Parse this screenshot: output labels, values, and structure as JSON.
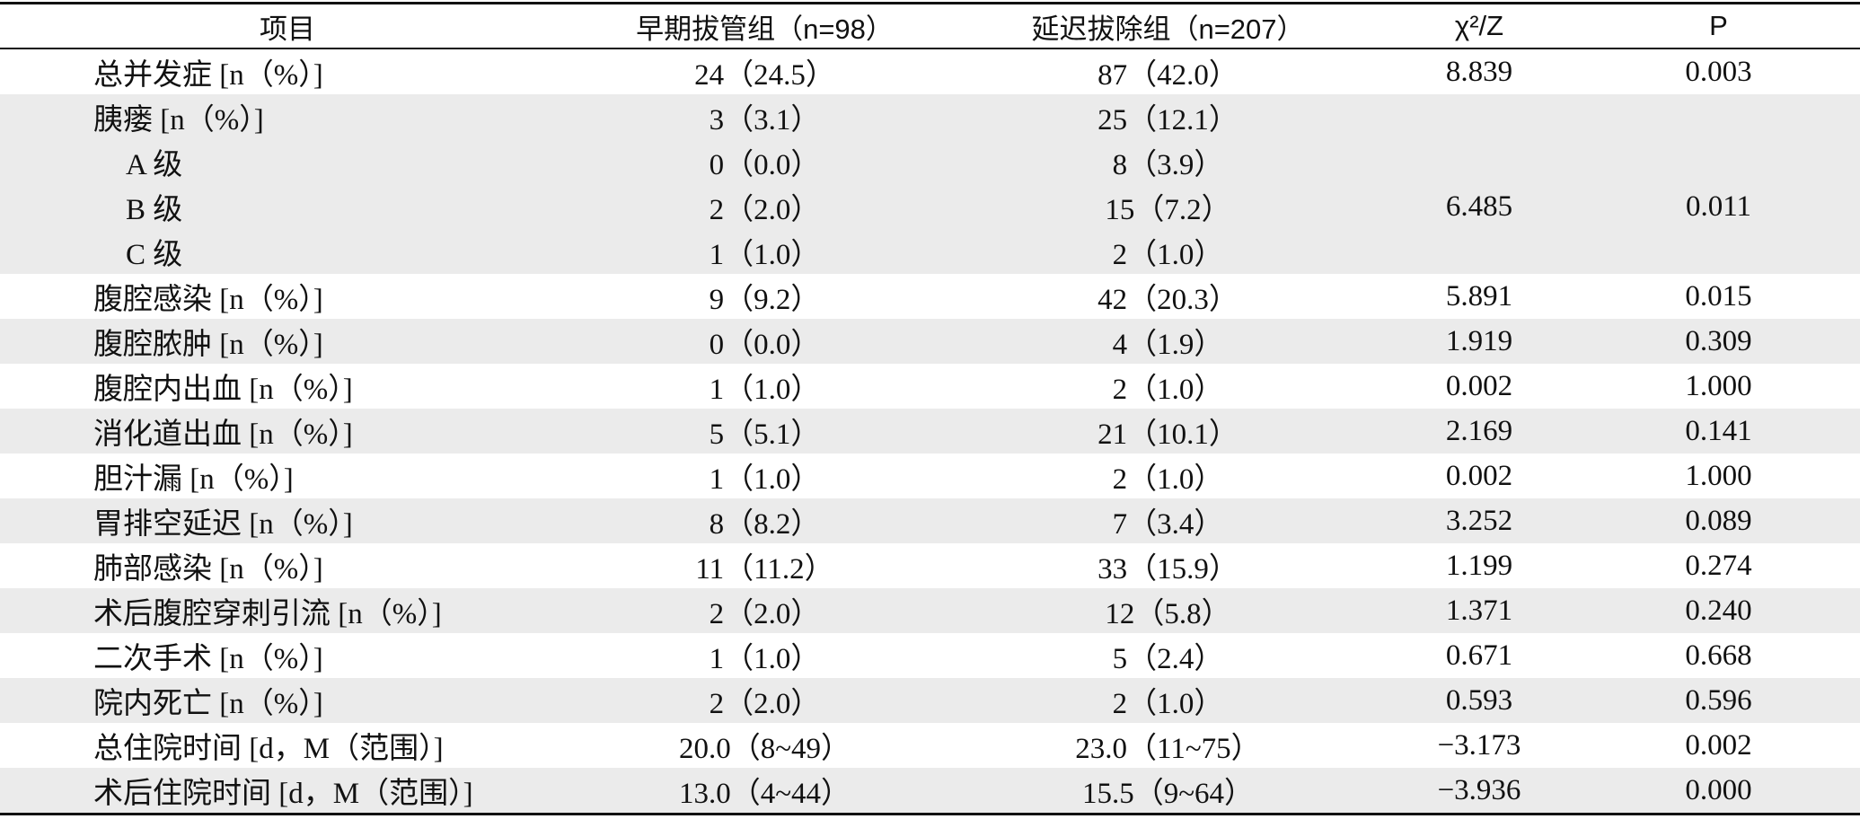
{
  "table": {
    "header": [
      "项目",
      "早期拔管组（n=98）",
      "延迟拔除组（n=207）",
      "χ²/Z",
      "P"
    ],
    "rows": [
      {
        "label": "总并发症 [n（%）]",
        "early": "24（24.5）",
        "late": "87（42.0）",
        "stat": "8.839",
        "p": "0.003"
      },
      {
        "label": "胰瘘 [n（%）]",
        "early": "3（3.1）",
        "late": "25（12.1）",
        "stat": "6.485",
        "p": "0.011",
        "grades": [
          {
            "label": "A 级",
            "early": "0（0.0）",
            "late": "8（3.9）"
          },
          {
            "label": "B 级",
            "early": "2（2.0）",
            "late": "15（7.2）"
          },
          {
            "label": "C 级",
            "early": "1（1.0）",
            "late": "2（1.0）"
          }
        ]
      },
      {
        "label": "腹腔感染 [n（%）]",
        "early": "9（9.2）",
        "late": "42（20.3）",
        "stat": "5.891",
        "p": "0.015"
      },
      {
        "label": "腹腔脓肿 [n（%）]",
        "early": "0（0.0）",
        "late": "4（1.9）",
        "stat": "1.919",
        "p": "0.309"
      },
      {
        "label": "腹腔内出血 [n（%）]",
        "early": "1（1.0）",
        "late": "2（1.0）",
        "stat": "0.002",
        "p": "1.000"
      },
      {
        "label": "消化道出血 [n（%）]",
        "early": "5（5.1）",
        "late": "21（10.1）",
        "stat": "2.169",
        "p": "0.141"
      },
      {
        "label": "胆汁漏 [n（%）]",
        "early": "1（1.0）",
        "late": "2（1.0）",
        "stat": "0.002",
        "p": "1.000"
      },
      {
        "label": "胃排空延迟 [n（%）]",
        "early": "8（8.2）",
        "late": "7（3.4）",
        "stat": "3.252",
        "p": "0.089"
      },
      {
        "label": "肺部感染 [n（%）]",
        "early": "11（11.2）",
        "late": "33（15.9）",
        "stat": "1.199",
        "p": "0.274"
      },
      {
        "label": "术后腹腔穿刺引流 [n（%）]",
        "early": "2（2.0）",
        "late": "12（5.8）",
        "stat": "1.371",
        "p": "0.240"
      },
      {
        "label": "二次手术 [n（%）]",
        "early": "1（1.0）",
        "late": "5（2.4）",
        "stat": "0.671",
        "p": "0.668"
      },
      {
        "label": "院内死亡 [n（%）]",
        "early": "2（2.0）",
        "late": "2（1.0）",
        "stat": "0.593",
        "p": "0.596"
      },
      {
        "label": "总住院时间 [d，M（范围）]",
        "early": "20.0（8~49）",
        "late": "23.0（11~75）",
        "stat": "−3.173",
        "p": "0.002"
      },
      {
        "label": "术后住院时间 [d，M（范围）]",
        "early": "13.0（4~44）",
        "late": "15.5（9~64）",
        "stat": "−3.936",
        "p": "0.000"
      }
    ]
  }
}
